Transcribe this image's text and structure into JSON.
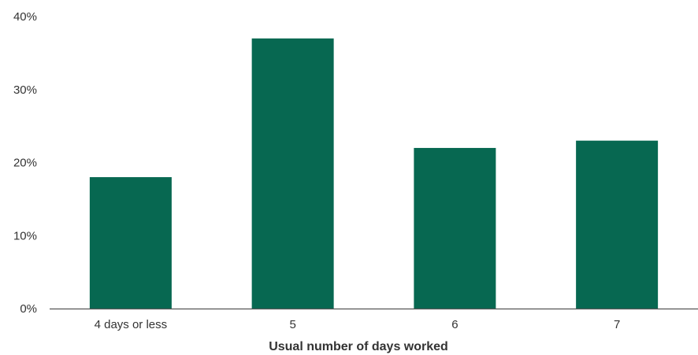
{
  "chart_data": {
    "type": "bar",
    "categories": [
      "4 days or less",
      "5",
      "6",
      "7"
    ],
    "values": [
      18,
      37,
      22,
      23
    ],
    "xlabel": "Usual number of days worked",
    "ylabel": "",
    "ylim": [
      0,
      40
    ],
    "yticks": [
      0,
      10,
      20,
      30,
      40
    ],
    "ytick_format": "%",
    "grid": false,
    "legend": "none",
    "bar_color": "#076851",
    "axis_color": "#555555",
    "text_color": "#333333"
  }
}
